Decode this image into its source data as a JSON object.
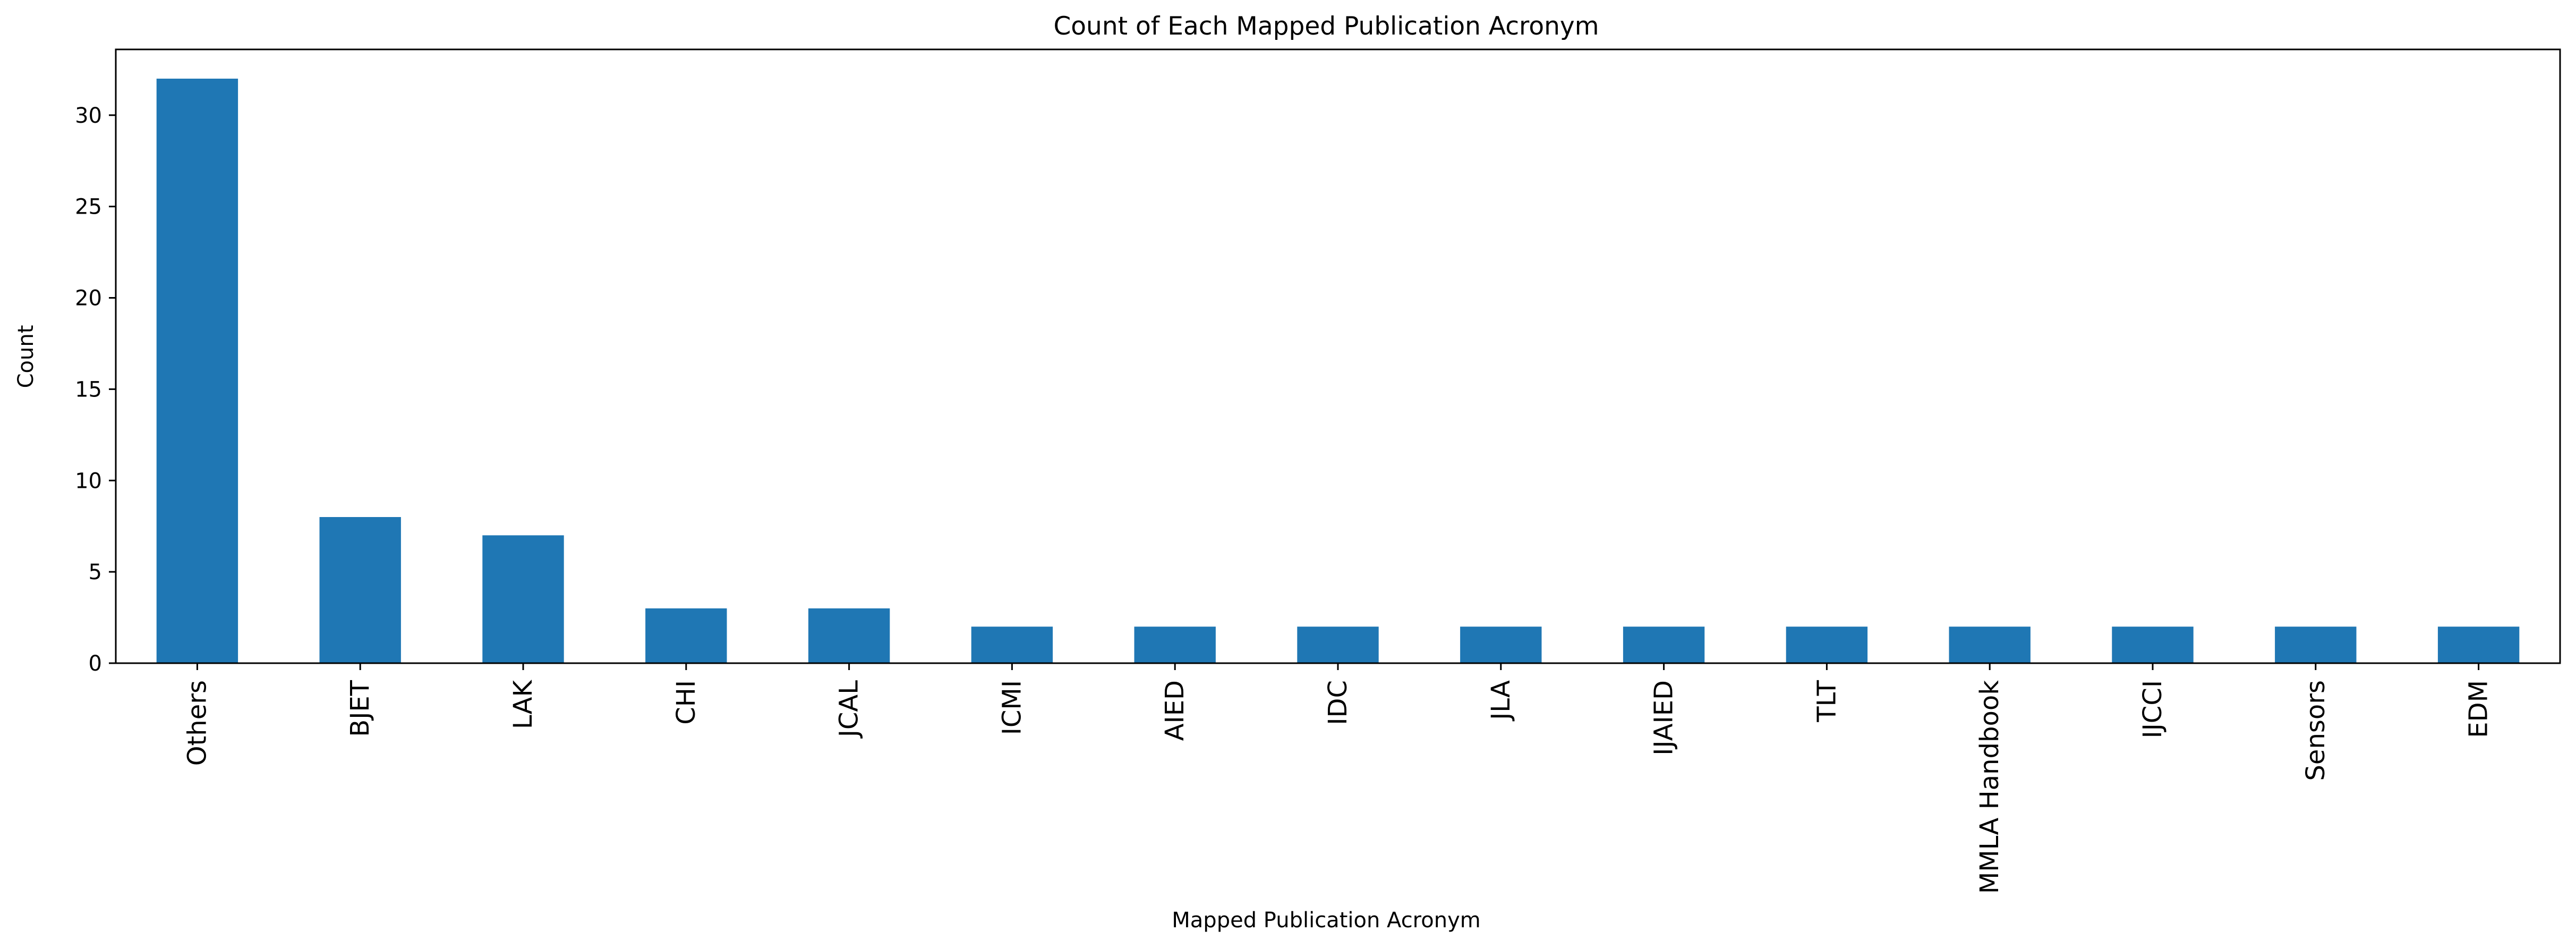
{
  "chart_data": {
    "type": "bar",
    "title": "Count of Each Mapped Publication Acronym",
    "xlabel": "Mapped Publication Acronym",
    "ylabel": "Count",
    "categories": [
      "Others",
      "BJET",
      "LAK",
      "CHI",
      "JCAL",
      "ICMI",
      "AIED",
      "IDC",
      "JLA",
      "IJAIED",
      "TLT",
      "MMLA Handbook",
      "IJCCI",
      "Sensors",
      "EDM"
    ],
    "values": [
      32,
      8,
      7,
      3,
      3,
      2,
      2,
      2,
      2,
      2,
      2,
      2,
      2,
      2,
      2
    ],
    "ylim": [
      0,
      33.6
    ],
    "yticks": [
      0,
      5,
      10,
      15,
      20,
      25,
      30
    ],
    "grid": false,
    "legend": "none",
    "bar_color": "#1f77b4"
  }
}
